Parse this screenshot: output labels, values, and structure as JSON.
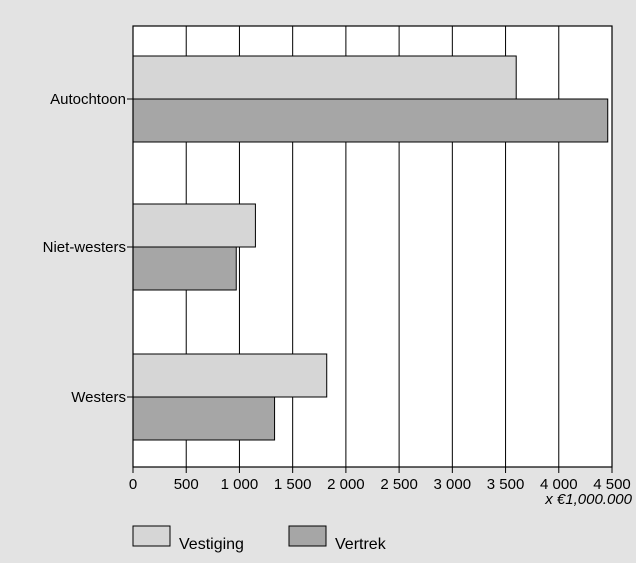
{
  "chart_data": {
    "type": "bar",
    "orientation": "horizontal",
    "categories": [
      "Autochtoon",
      "Niet-westers",
      "Westers"
    ],
    "series": [
      {
        "name": "Vestiging",
        "color": "#d6d6d6",
        "values": [
          3600,
          1150,
          1820
        ]
      },
      {
        "name": "Vertrek",
        "color": "#a6a6a6",
        "values": [
          4460,
          970,
          1330
        ]
      }
    ],
    "xlim": [
      0,
      4500
    ],
    "xticks": [
      0,
      500,
      1000,
      1500,
      2000,
      2500,
      3000,
      3500,
      4000,
      4500
    ],
    "xtick_labels": [
      "0",
      "500",
      "1 000",
      "1 500",
      "2 000",
      "2 500",
      "3 000",
      "3 500",
      "4 000",
      "4 500"
    ],
    "xunit": "x €1,000.000",
    "grid": "vertical",
    "legend_position": "bottom-left"
  }
}
